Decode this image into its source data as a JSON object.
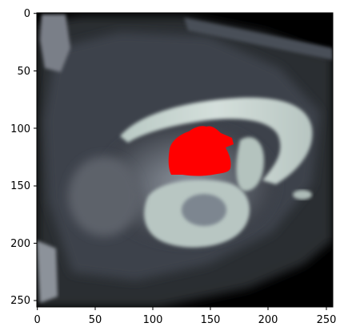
{
  "colors": {
    "background": "#000000",
    "tissue_dark": "#2c2f36",
    "tissue_mid": "#6c717c",
    "tissue_bright": "#c7d2cf",
    "overlay": "#ff0000",
    "axis": "#000000"
  },
  "figure": {
    "overlay_label": "segmentation-mask",
    "image_extent": [
      0,
      256
    ]
  },
  "axes": {
    "x_ticks": [
      "0",
      "50",
      "100",
      "150",
      "200",
      "250"
    ],
    "y_ticks": [
      "0",
      "50",
      "100",
      "150",
      "200",
      "250"
    ]
  }
}
